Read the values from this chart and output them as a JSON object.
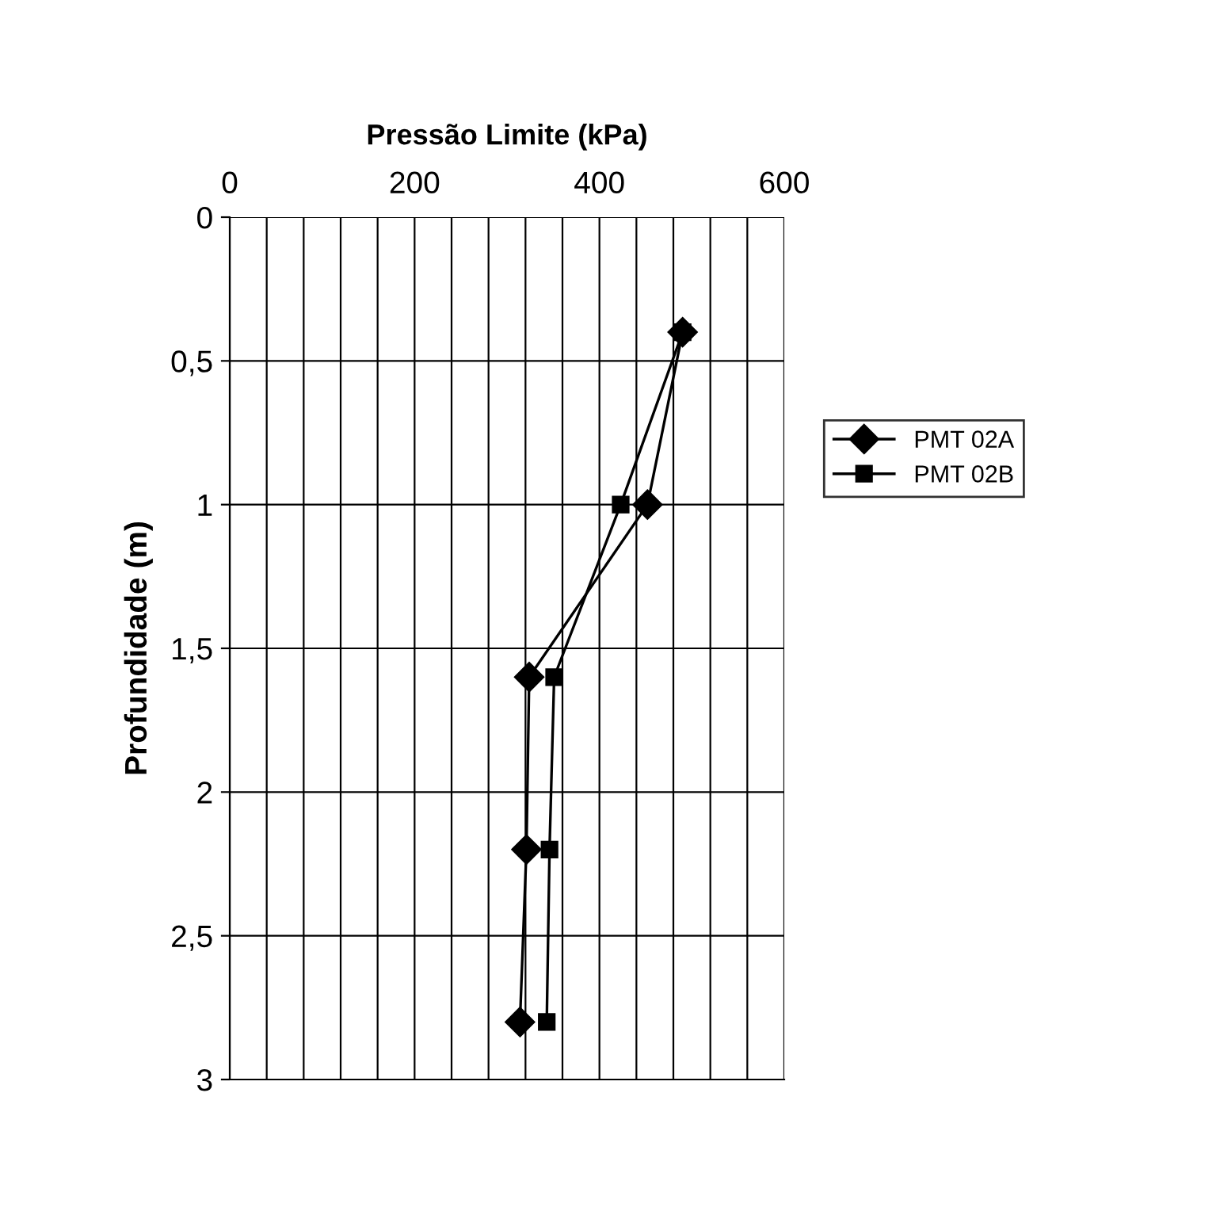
{
  "chart_data": {
    "type": "line",
    "xlabel": "Pressão Limite (kPa)",
    "ylabel": "Profundidade (m)",
    "xlim": [
      0,
      600
    ],
    "ylim": [
      3,
      0
    ],
    "xticks": [
      0,
      {
        "value": 40,
        "label": null
      },
      {
        "value": 80,
        "label": null
      },
      {
        "value": 120,
        "label": null
      },
      {
        "value": 160,
        "label": null
      },
      200,
      {
        "value": 240,
        "label": null
      },
      {
        "value": 280,
        "label": null
      },
      {
        "value": 320,
        "label": null
      },
      {
        "value": 360,
        "label": null
      },
      400,
      {
        "value": 440,
        "label": null
      },
      {
        "value": 480,
        "label": null
      },
      {
        "value": 520,
        "label": null
      },
      {
        "value": 560,
        "label": null
      },
      600
    ],
    "yticks": [
      0,
      {
        "value": 0.5,
        "label": "0,5"
      },
      1,
      {
        "value": 1.5,
        "label": "1,5"
      },
      2,
      {
        "value": 2.5,
        "label": "2,5"
      },
      3
    ],
    "grid": true,
    "legend": "right",
    "series": [
      {
        "name": "PMT 02A",
        "color": "#000000",
        "marker": "diamond",
        "x": [
          490,
          452,
          324,
          321,
          314
        ],
        "values": [
          0.4,
          1.0,
          1.6,
          2.2,
          2.8
        ]
      },
      {
        "name": "PMT 02B",
        "color": "#000000",
        "marker": "square",
        "x": [
          490,
          423,
          351,
          346,
          343
        ],
        "values": [
          0.4,
          1.0,
          1.6,
          2.2,
          2.8
        ]
      }
    ]
  }
}
